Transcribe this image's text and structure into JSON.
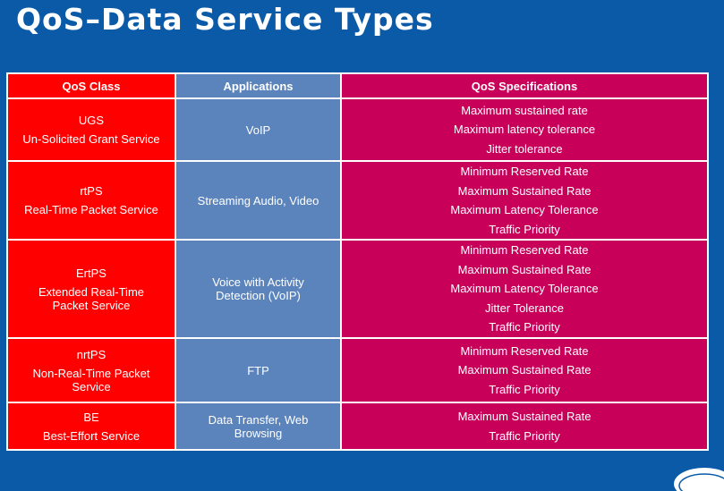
{
  "title": "QoS–Data Service Types",
  "headers": {
    "qos_class": "QoS Class",
    "applications": "Applications",
    "qos_specs": "QoS Specifications"
  },
  "rows": [
    {
      "class_abbr": "UGS",
      "class_name": [
        "Un-Solicited Grant Service"
      ],
      "applications": [
        "VoIP"
      ],
      "specs": [
        "Maximum sustained rate",
        "Maximum latency tolerance",
        "Jitter tolerance"
      ]
    },
    {
      "class_abbr": "rtPS",
      "class_name": [
        "Real-Time Packet Service"
      ],
      "applications": [
        "Streaming Audio, Video"
      ],
      "specs": [
        "Minimum Reserved Rate",
        "Maximum Sustained Rate",
        "Maximum Latency Tolerance",
        "Traffic Priority"
      ]
    },
    {
      "class_abbr": "ErtPS",
      "class_name": [
        "Extended Real-Time",
        "Packet Service"
      ],
      "applications": [
        "Voice with Activity",
        "Detection (VoIP)"
      ],
      "specs": [
        "Minimum Reserved Rate",
        "Maximum Sustained Rate",
        "Maximum Latency Tolerance",
        "Jitter Tolerance",
        "Traffic Priority"
      ]
    },
    {
      "class_abbr": "nrtPS",
      "class_name": [
        "Non-Real-Time Packet",
        "Service"
      ],
      "applications": [
        "FTP"
      ],
      "specs": [
        "Minimum Reserved Rate",
        "Maximum Sustained Rate",
        "Traffic Priority"
      ]
    },
    {
      "class_abbr": "BE",
      "class_name": [
        "Best-Effort Service"
      ],
      "applications": [
        "Data Transfer, Web",
        "Browsing"
      ],
      "specs": [
        "Maximum Sustained Rate",
        "Traffic Priority"
      ]
    }
  ],
  "colors": {
    "background": "#0a5aa8",
    "class_column": "#ff0000",
    "applications_column": "#5b84bd",
    "specs_column": "#c8005a"
  }
}
